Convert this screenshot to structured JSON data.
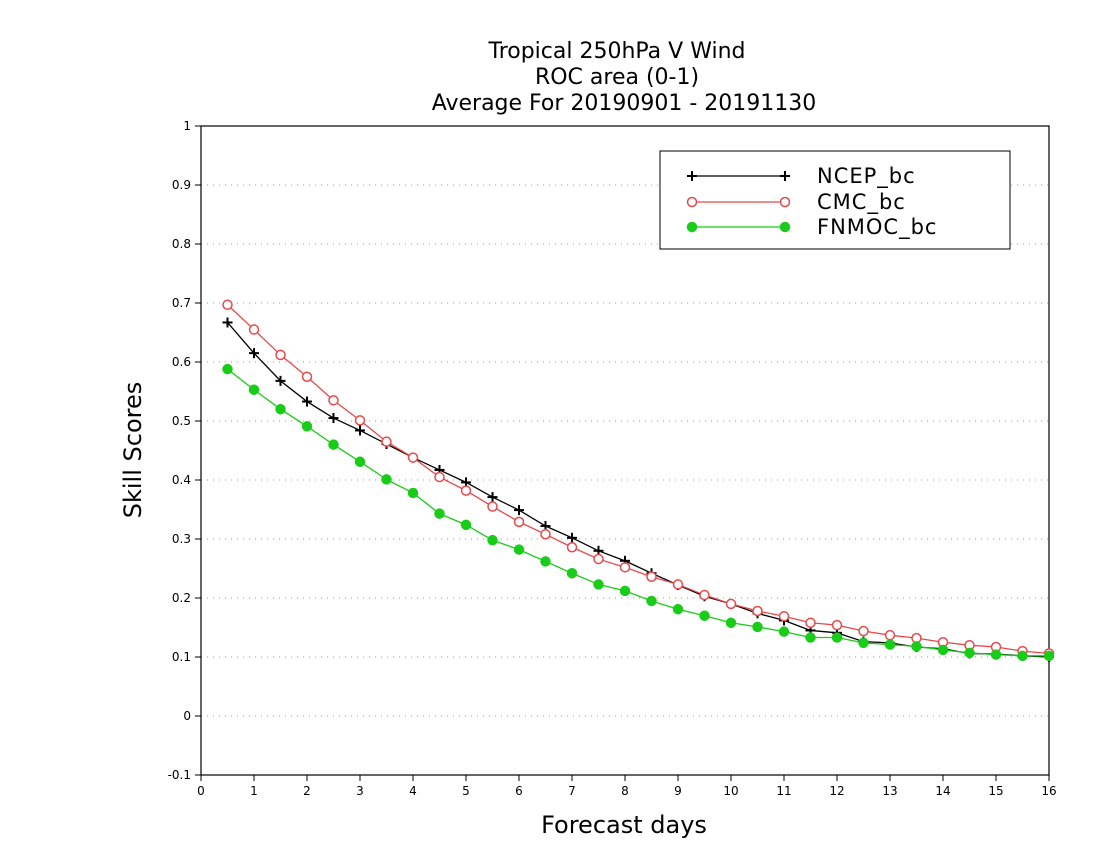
{
  "chart_data": {
    "type": "line",
    "title": [
      "Tropical 250hPa V Wind",
      "ROC area (0-1)",
      "Average For 20190901 - 20191130"
    ],
    "xlabel": "Forecast days",
    "ylabel": "Skill Scores",
    "xlim": [
      0,
      16
    ],
    "ylim": [
      -0.1,
      1
    ],
    "x_ticks": [
      "0",
      "1",
      "2",
      "3",
      "4",
      "5",
      "6",
      "7",
      "8",
      "9",
      "10",
      "11",
      "12",
      "13",
      "14",
      "15",
      "16"
    ],
    "y_ticks": [
      "-0.1",
      "0",
      "0.1",
      "0.2",
      "0.3",
      "0.4",
      "0.5",
      "0.6",
      "0.7",
      "0.8",
      "0.9",
      "1"
    ],
    "grid": "horizontal dotted",
    "legend_position": "top-right",
    "x": [
      0.5,
      1,
      1.5,
      2,
      2.5,
      3,
      3.5,
      4,
      4.5,
      5,
      5.5,
      6,
      6.5,
      7,
      7.5,
      8,
      8.5,
      9,
      9.5,
      10,
      10.5,
      11,
      11.5,
      12,
      12.5,
      13,
      13.5,
      14,
      14.5,
      15,
      15.5,
      16
    ],
    "series": [
      {
        "name": "NCEP_bc",
        "color": "#000000",
        "marker": "plus",
        "values": [
          0.667,
          0.615,
          0.568,
          0.533,
          0.505,
          0.484,
          0.461,
          0.438,
          0.417,
          0.396,
          0.371,
          0.349,
          0.322,
          0.302,
          0.28,
          0.263,
          0.242,
          0.222,
          0.203,
          0.19,
          0.174,
          0.162,
          0.145,
          0.141,
          0.126,
          0.124,
          0.117,
          0.114,
          0.106,
          0.105,
          0.102,
          0.1
        ]
      },
      {
        "name": "CMC_bc",
        "color": "#e8484a",
        "marker": "open-circle",
        "values": [
          0.697,
          0.655,
          0.612,
          0.575,
          0.535,
          0.501,
          0.465,
          0.438,
          0.405,
          0.382,
          0.355,
          0.329,
          0.308,
          0.286,
          0.266,
          0.252,
          0.236,
          0.223,
          0.205,
          0.19,
          0.178,
          0.169,
          0.158,
          0.154,
          0.144,
          0.137,
          0.132,
          0.125,
          0.12,
          0.117,
          0.11,
          0.106
        ]
      },
      {
        "name": "FNMOC_bc",
        "color": "#18cc18",
        "marker": "filled-circle",
        "values": [
          0.588,
          0.553,
          0.52,
          0.491,
          0.46,
          0.431,
          0.401,
          0.378,
          0.343,
          0.324,
          0.298,
          0.282,
          0.262,
          0.242,
          0.223,
          0.212,
          0.195,
          0.181,
          0.17,
          0.158,
          0.151,
          0.143,
          0.133,
          0.133,
          0.124,
          0.121,
          0.118,
          0.112,
          0.107,
          0.104,
          0.102,
          0.102
        ]
      }
    ]
  }
}
